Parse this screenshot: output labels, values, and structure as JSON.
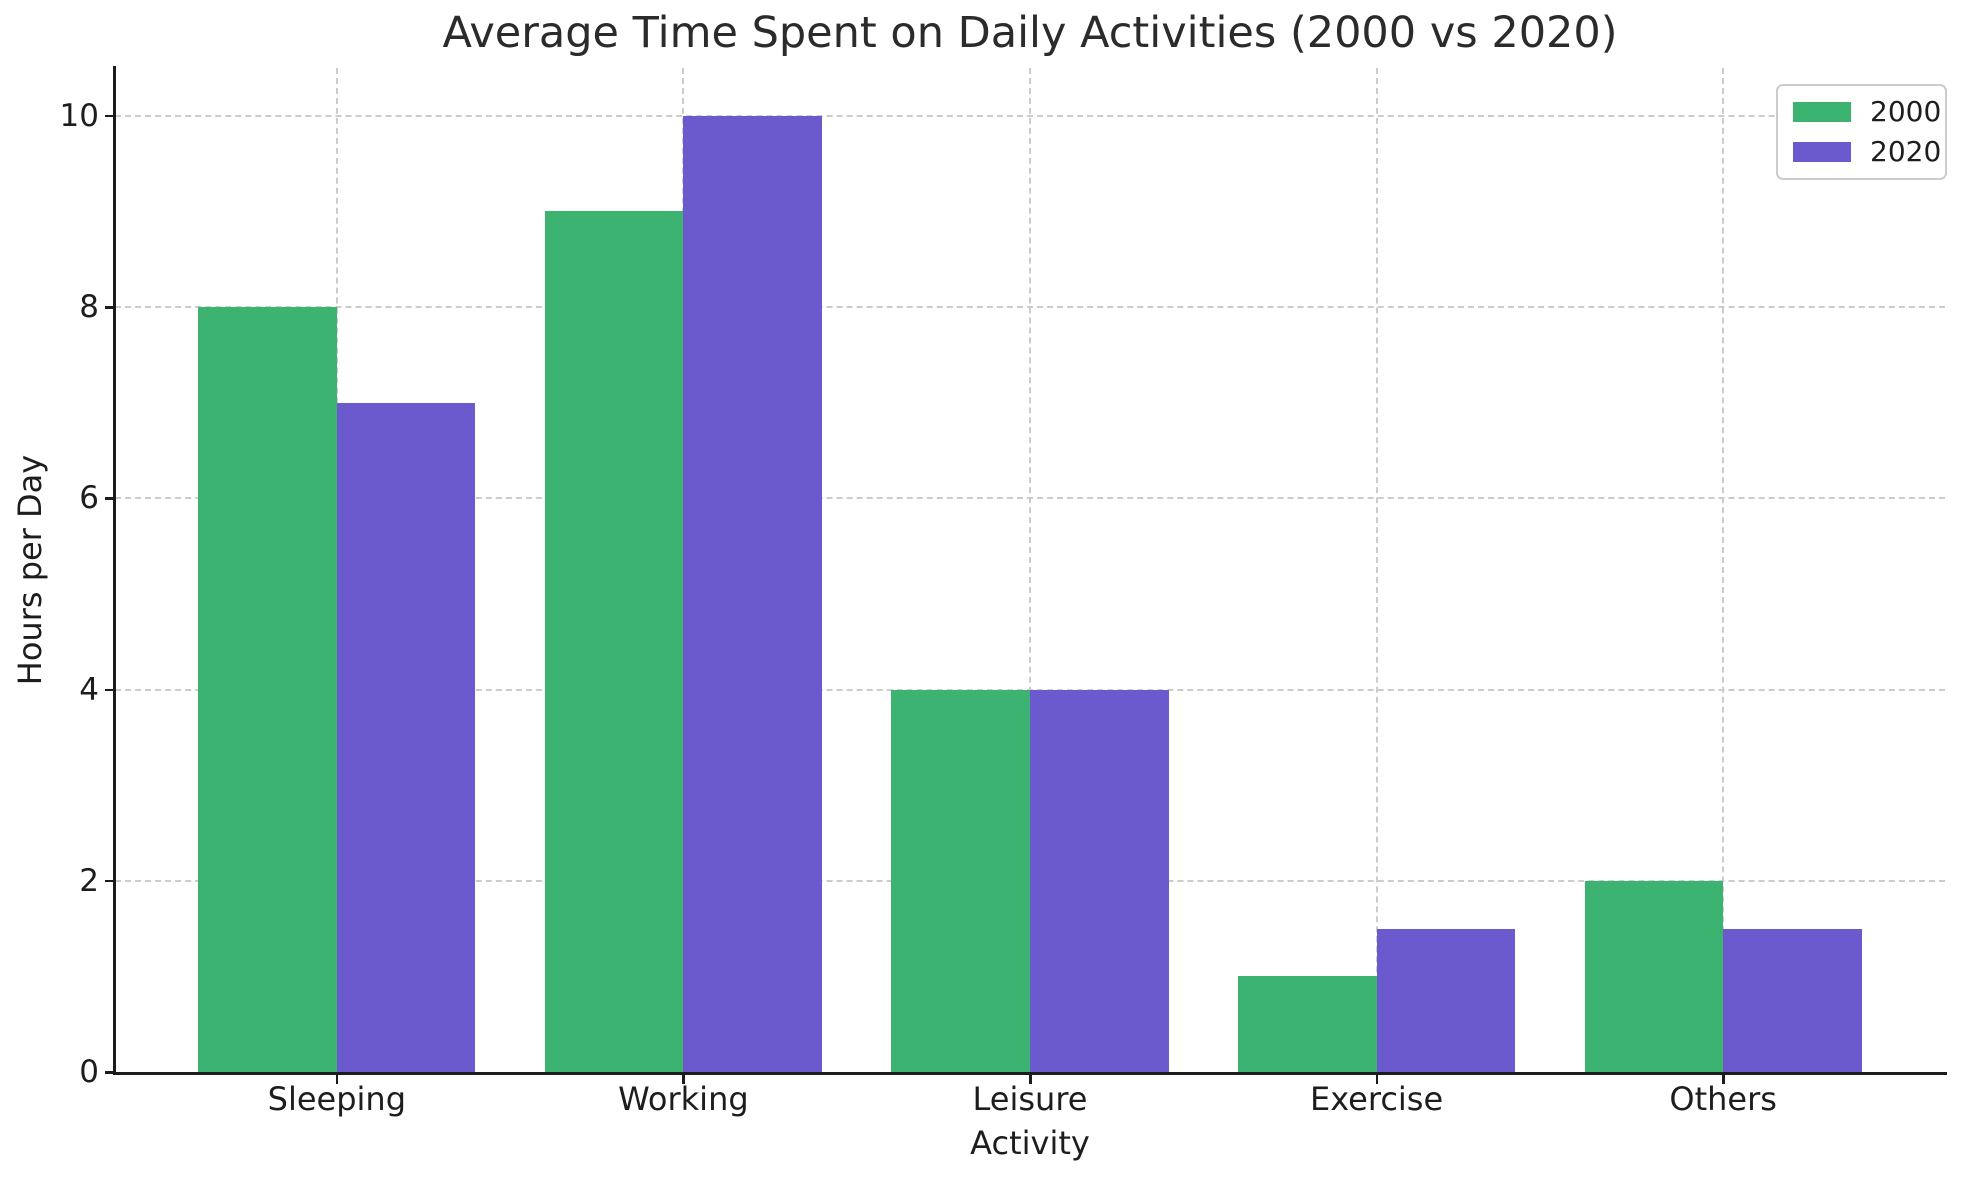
{
  "chart_data": {
    "type": "bar",
    "title": "Average Time Spent on Daily Activities (2000 vs 2020)",
    "xlabel": "Activity",
    "ylabel": "Hours per Day",
    "categories": [
      "Sleeping",
      "Working",
      "Leisure",
      "Exercise",
      "Others"
    ],
    "series": [
      {
        "name": "2000",
        "color": "#3cb371",
        "values": [
          8,
          9,
          4,
          1,
          2
        ]
      },
      {
        "name": "2020",
        "color": "#6a5acd",
        "values": [
          7,
          10,
          4,
          1.5,
          1.5
        ]
      }
    ],
    "yticks": [
      0,
      2,
      4,
      6,
      8,
      10
    ],
    "ylim": [
      0,
      10.5
    ],
    "bar_width_units": 0.4,
    "grid": {
      "style": "dashed",
      "color": "#cccccc",
      "horizontal": true,
      "vertical": true
    },
    "legend_position": "top-right",
    "axis_color": "#1c1c1c",
    "background_color": "#ffffff"
  }
}
